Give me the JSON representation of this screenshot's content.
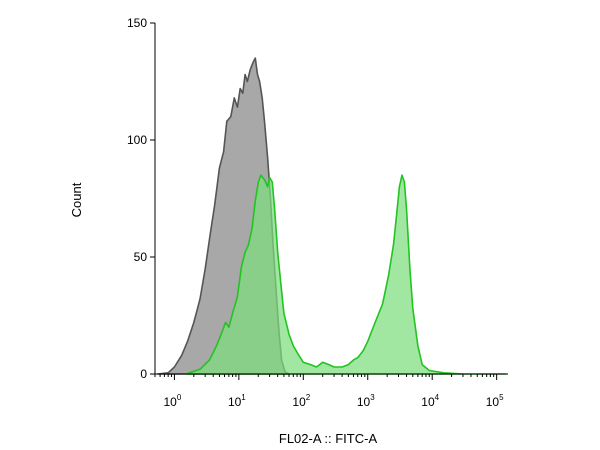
{
  "chart_data": {
    "type": "area",
    "title": "",
    "xlabel": "FL02-A :: FITC-A",
    "ylabel": "Count",
    "x_scale": "log",
    "xlim": [
      0.5,
      150000
    ],
    "ylim": [
      0,
      150
    ],
    "y_ticks": [
      0,
      50,
      100,
      150
    ],
    "x_ticks": [
      {
        "base": "10",
        "exp": "0",
        "value": 1
      },
      {
        "base": "10",
        "exp": "1",
        "value": 10
      },
      {
        "base": "10",
        "exp": "2",
        "value": 100
      },
      {
        "base": "10",
        "exp": "3",
        "value": 1000
      },
      {
        "base": "10",
        "exp": "4",
        "value": 10000
      },
      {
        "base": "10",
        "exp": "5",
        "value": 100000
      }
    ],
    "grid": false,
    "legend": "none",
    "series": [
      {
        "color": "#a8a8a8",
        "stroke": "#555555",
        "points": [
          [
            0.55,
            0
          ],
          [
            0.8,
            0.5
          ],
          [
            1.0,
            3
          ],
          [
            1.3,
            8
          ],
          [
            1.6,
            14
          ],
          [
            2.0,
            22
          ],
          [
            2.5,
            32
          ],
          [
            3.0,
            45
          ],
          [
            3.6,
            60
          ],
          [
            4.2,
            72
          ],
          [
            5.0,
            88
          ],
          [
            5.8,
            95
          ],
          [
            6.5,
            108
          ],
          [
            7.5,
            110
          ],
          [
            8.5,
            118
          ],
          [
            9.5,
            114
          ],
          [
            10.5,
            122
          ],
          [
            11.5,
            120
          ],
          [
            12.5,
            128
          ],
          [
            13.5,
            125
          ],
          [
            15,
            130
          ],
          [
            16.5,
            133
          ],
          [
            18,
            135
          ],
          [
            19.5,
            128
          ],
          [
            21,
            125
          ],
          [
            23,
            118
          ],
          [
            25,
            108
          ],
          [
            28,
            92
          ],
          [
            31,
            75
          ],
          [
            34,
            55
          ],
          [
            38,
            35
          ],
          [
            42,
            18
          ],
          [
            46,
            6
          ],
          [
            52,
            1
          ],
          [
            60,
            0
          ]
        ]
      },
      {
        "color": "#7ddc7d",
        "stroke": "#22c422",
        "points": [
          [
            1.5,
            0
          ],
          [
            2.5,
            2
          ],
          [
            3.5,
            6
          ],
          [
            4.5,
            12
          ],
          [
            5.5,
            18
          ],
          [
            6.2,
            22
          ],
          [
            7.0,
            20
          ],
          [
            8.0,
            26
          ],
          [
            9.5,
            33
          ],
          [
            11,
            46
          ],
          [
            12.5,
            52
          ],
          [
            14,
            55
          ],
          [
            16,
            62
          ],
          [
            18,
            74
          ],
          [
            20,
            82
          ],
          [
            22,
            85
          ],
          [
            25,
            83
          ],
          [
            28,
            80
          ],
          [
            30,
            84
          ],
          [
            33,
            82
          ],
          [
            36,
            70
          ],
          [
            40,
            52
          ],
          [
            45,
            38
          ],
          [
            50,
            26
          ],
          [
            60,
            17
          ],
          [
            70,
            12
          ],
          [
            85,
            8
          ],
          [
            100,
            5
          ],
          [
            130,
            4
          ],
          [
            160,
            3
          ],
          [
            200,
            5
          ],
          [
            250,
            4
          ],
          [
            300,
            3
          ],
          [
            400,
            3
          ],
          [
            500,
            4
          ],
          [
            600,
            6
          ],
          [
            700,
            7
          ],
          [
            850,
            10
          ],
          [
            1000,
            14
          ],
          [
            1300,
            22
          ],
          [
            1700,
            30
          ],
          [
            2100,
            42
          ],
          [
            2500,
            55
          ],
          [
            2800,
            68
          ],
          [
            3100,
            80
          ],
          [
            3400,
            85
          ],
          [
            3700,
            82
          ],
          [
            4000,
            70
          ],
          [
            4500,
            45
          ],
          [
            5000,
            28
          ],
          [
            6000,
            12
          ],
          [
            7000,
            4
          ],
          [
            9000,
            1.5
          ],
          [
            15000,
            0.5
          ],
          [
            30000,
            0
          ],
          [
            140000,
            0
          ]
        ]
      }
    ]
  }
}
